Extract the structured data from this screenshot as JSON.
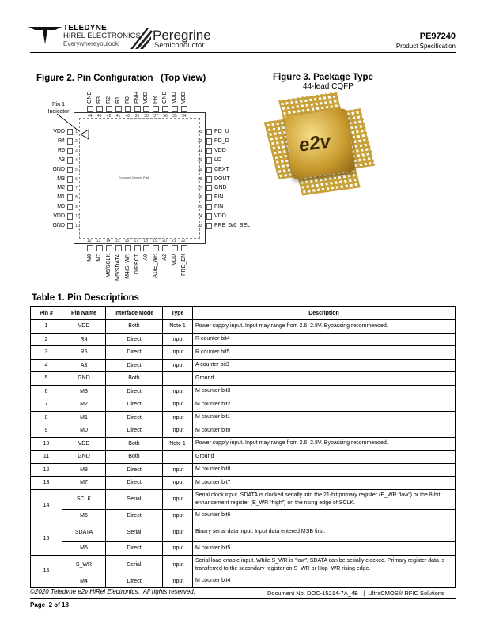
{
  "header": {
    "brand1": "TELEDYNE",
    "brand2": "HIREL ELECTRONICS",
    "tagline": "Everywhereyoulook",
    "brand3": "Peregrine",
    "brand4": "Semiconductor",
    "part_number": "PE97240",
    "doc_type": "Product Specification"
  },
  "fig2": {
    "title": "Figure 2. Pin Configuration   (Top View)",
    "pin1_label": "Pin 1 Indicator",
    "pad_label": "Exposed Ground Pad",
    "top": [
      [
        "44",
        "GND"
      ],
      [
        "43",
        "R3"
      ],
      [
        "42",
        "R2"
      ],
      [
        "41",
        "R1"
      ],
      [
        "40",
        "R0"
      ],
      [
        "39",
        "ENH"
      ],
      [
        "38",
        "VDD"
      ],
      [
        "37",
        "FR"
      ],
      [
        "36",
        "GND"
      ],
      [
        "35",
        "VDD"
      ],
      [
        "34",
        "VDD"
      ]
    ],
    "left": [
      [
        "1",
        "VDD"
      ],
      [
        "2",
        "R4"
      ],
      [
        "3",
        "R5"
      ],
      [
        "4",
        "A3"
      ],
      [
        "5",
        "GND"
      ],
      [
        "6",
        "M3"
      ],
      [
        "7",
        "M2"
      ],
      [
        "8",
        "M1"
      ],
      [
        "9",
        "M0"
      ],
      [
        "10",
        "VDD"
      ],
      [
        "11",
        "GND"
      ]
    ],
    "right": [
      [
        "33",
        "PD_U"
      ],
      [
        "32",
        "PD_D"
      ],
      [
        "31",
        "VDD"
      ],
      [
        "30",
        "LD"
      ],
      [
        "29",
        "CEXT"
      ],
      [
        "28",
        "DOUT"
      ],
      [
        "27",
        "GND"
      ],
      [
        "26",
        "FIN"
      ],
      [
        "25",
        "FIN"
      ],
      [
        "24",
        "VDD"
      ],
      [
        "23",
        "PRE_5/6_SEL"
      ]
    ],
    "bottom": [
      [
        "12",
        "M8"
      ],
      [
        "13",
        "M7"
      ],
      [
        "14",
        "M6/SCLK"
      ],
      [
        "15",
        "M5/SDATA"
      ],
      [
        "16",
        "M4/S_WR"
      ],
      [
        "17",
        "DIRECT"
      ],
      [
        "18",
        "A0"
      ],
      [
        "19",
        "A1/E_WR"
      ],
      [
        "20",
        "A2"
      ],
      [
        "21",
        "VDD"
      ],
      [
        "22",
        "PRE_EN"
      ]
    ]
  },
  "fig3": {
    "title": "Figure 3. Package Type",
    "subtitle": "44-lead CQFP",
    "chip_logo": "e2v"
  },
  "table": {
    "title": "Table 1. Pin Descriptions",
    "headers": [
      "Pin #",
      "Pin Name",
      "Interface Mode",
      "Type",
      "Description"
    ],
    "rows": [
      {
        "pin": "1",
        "name": "VDD",
        "mode": "Both",
        "type": "Note 1",
        "desc": "Power supply input. Input may range from 2.6–2.8V. Bypassing recommended."
      },
      {
        "pin": "2",
        "name": "R4",
        "mode": "Direct",
        "type": "Input",
        "desc": "R counter bit4"
      },
      {
        "pin": "3",
        "name": "R5",
        "mode": "Direct",
        "type": "Input",
        "desc": "R counter bit5"
      },
      {
        "pin": "4",
        "name": "A3",
        "mode": "Direct",
        "type": "Input",
        "desc": "A counter bit3"
      },
      {
        "pin": "5",
        "name": "GND",
        "mode": "Both",
        "type": "",
        "desc": "Ground"
      },
      {
        "pin": "6",
        "name": "M3",
        "mode": "Direct",
        "type": "Input",
        "desc": "M counter bit3"
      },
      {
        "pin": "7",
        "name": "M2",
        "mode": "Direct",
        "type": "Input",
        "desc": "M counter bit2"
      },
      {
        "pin": "8",
        "name": "M1",
        "mode": "Direct",
        "type": "Input",
        "desc": "M counter bit1"
      },
      {
        "pin": "9",
        "name": "M0",
        "mode": "Direct",
        "type": "Input",
        "desc": "M counter bit0"
      },
      {
        "pin": "10",
        "name": "VDD",
        "mode": "Both",
        "type": "Note 1",
        "desc": "Power supply input. Input may range from 2.6–2.8V. Bypassing recommended."
      },
      {
        "pin": "11",
        "name": "GND",
        "mode": "Both",
        "type": "",
        "desc": "Ground"
      },
      {
        "pin": "12",
        "name": "M8",
        "mode": "Direct",
        "type": "Input",
        "desc": "M counter bit8"
      },
      {
        "pin": "13",
        "name": "M7",
        "mode": "Direct",
        "type": "Input",
        "desc": "M counter bit7"
      },
      {
        "pin": "14",
        "name": "SCLK",
        "mode": "Serial",
        "type": "Input",
        "desc": "Serial clock input. SDATA is clocked serially into the 21-bit primary register (E_WR “low”) or the 8-bit enhancement register (E_WR “high”) on the rising edge of SCLK.",
        "span": 2
      },
      {
        "pin": "",
        "name": "M6",
        "mode": "Direct",
        "type": "Input",
        "desc": "M counter bit6"
      },
      {
        "pin": "15",
        "name": "SDATA",
        "mode": "Serial",
        "type": "Input",
        "desc": "Binary serial data input. Input data entered MSB first.",
        "span": 2
      },
      {
        "pin": "",
        "name": "M5",
        "mode": "Direct",
        "type": "Input",
        "desc": "M counter bit5"
      },
      {
        "pin": "16",
        "name": "S_WR",
        "mode": "Serial",
        "type": "Input",
        "desc": "Serial load enable input. While S_WR is “low”, SDATA can be serially clocked. Primary register data is transferred to the secondary register on S_WR or Hop_WR rising edge.",
        "span": 2
      },
      {
        "pin": "",
        "name": "M4",
        "mode": "Direct",
        "type": "Input",
        "desc": "M counter bit4"
      }
    ]
  },
  "footer": {
    "copyright": "©2020 Teledyne e2v HiRel Electronics.  All rights reserved.",
    "doc_no": "Document No. DOC-15214-7A_4B   |  UltraCMOS® RFIC Solutions",
    "page": "Page  2 of 18"
  }
}
